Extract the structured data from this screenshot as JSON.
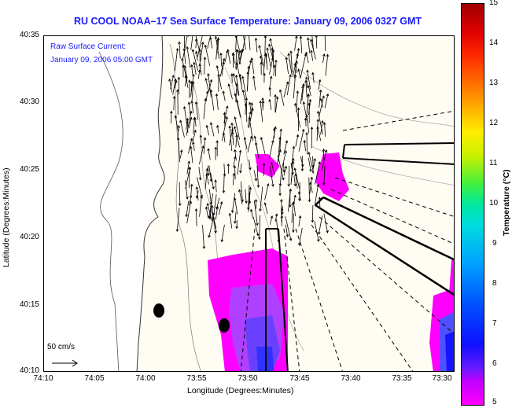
{
  "title": "RU COOL   NOAA–17  Sea Surface Temperature:  January 09, 2006 0327 GMT",
  "current_label": {
    "line1": "Raw Surface Current:",
    "line2": "January 09, 2006 05:00 GMT"
  },
  "scale_label": "50 cm/s",
  "axes": {
    "xlabel": "Longitude (Degrees:Minutes)",
    "ylabel": "Latitude (Degrees:Minutes)",
    "xticks": [
      "74:10",
      "74:05",
      "74:00",
      "73:55",
      "73:50",
      "73:45",
      "73:40",
      "73:35",
      "73:30"
    ],
    "yticks": [
      "40:35",
      "40:30",
      "40:25",
      "40:20",
      "40:15",
      "40:10"
    ]
  },
  "colorbar": {
    "label": "Temperature (°C)",
    "ticks": [
      "15",
      "14",
      "13",
      "12",
      "11",
      "10",
      "9",
      "8",
      "7",
      "6",
      "5"
    ],
    "range": [
      5,
      15
    ]
  },
  "colors": {
    "title": "#1a1aff",
    "sst_low": "#ff00ff",
    "sst_mid": "#8040ff",
    "sst_cold": "#2020ff"
  }
}
